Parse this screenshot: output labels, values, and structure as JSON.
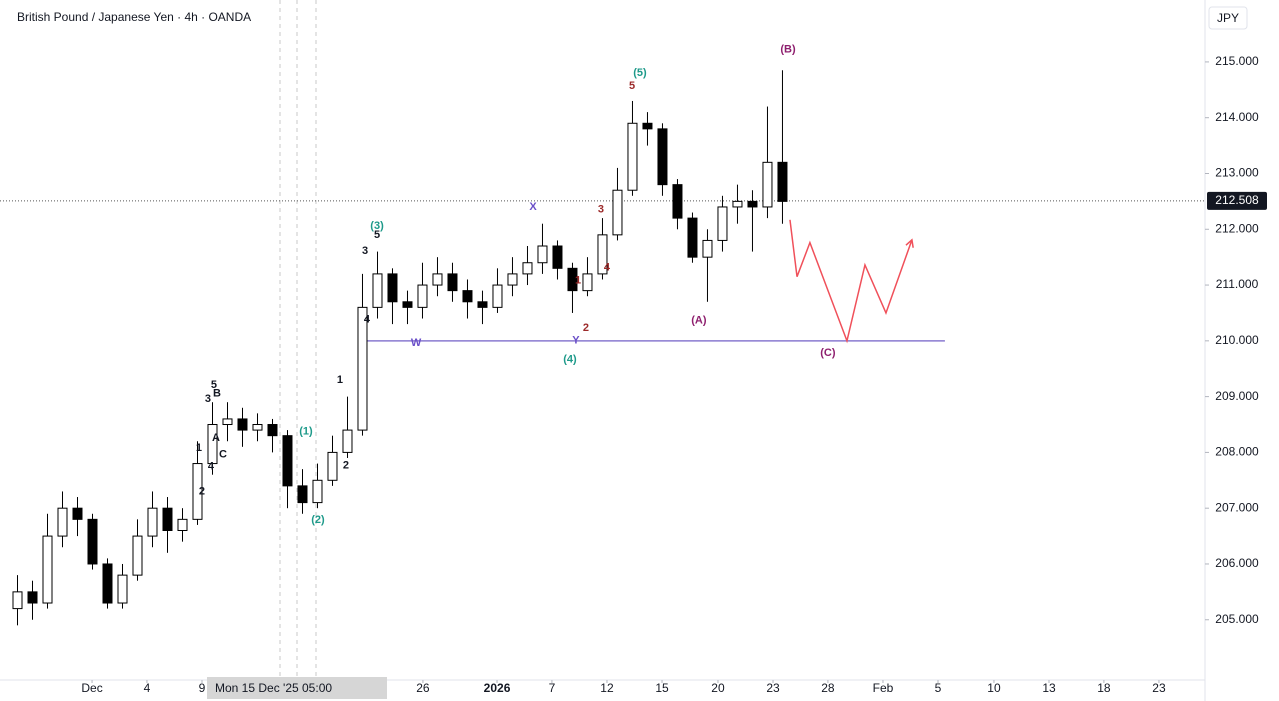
{
  "chart_data": {
    "type": "candlestick",
    "title": "British Pound / Japanese Yen · 4h · OANDA",
    "currency": "JPY",
    "last_price": 212.508,
    "crosshair_label": "Mon 15 Dec '25  05:00",
    "up_color": "#ffffff",
    "down_color": "#000000",
    "open": [
      205.2,
      205.5,
      205.3,
      206.5,
      207.0,
      206.8,
      206.0,
      205.3,
      205.8,
      206.5,
      207.0,
      206.6,
      206.8,
      207.8,
      208.5,
      208.6,
      208.4,
      208.5,
      208.3,
      207.4,
      207.1,
      207.5,
      208.0,
      208.4,
      210.6,
      211.2,
      210.7,
      210.6,
      211.0,
      211.2,
      210.9,
      210.7,
      210.6,
      211.0,
      211.2,
      211.4,
      211.7,
      211.3,
      210.9,
      211.2,
      211.9,
      212.7,
      213.9,
      213.8,
      212.8,
      212.2,
      211.5,
      211.8,
      212.4,
      212.5,
      212.4,
      213.2
    ],
    "high": [
      205.8,
      205.7,
      206.9,
      207.3,
      207.2,
      206.9,
      206.1,
      206.0,
      206.8,
      207.3,
      207.2,
      207.0,
      208.2,
      208.9,
      208.9,
      208.8,
      208.7,
      208.6,
      208.4,
      207.7,
      207.8,
      208.3,
      209.0,
      211.2,
      211.6,
      211.3,
      210.9,
      211.4,
      211.5,
      211.4,
      211.1,
      210.9,
      211.3,
      211.5,
      211.7,
      212.1,
      211.8,
      211.4,
      211.5,
      212.2,
      213.1,
      214.3,
      214.1,
      213.9,
      212.9,
      212.3,
      212.0,
      212.6,
      212.8,
      212.7,
      214.2,
      214.85
    ],
    "low": [
      204.9,
      205.0,
      205.2,
      206.3,
      206.5,
      205.9,
      205.2,
      205.2,
      205.7,
      206.3,
      206.2,
      206.4,
      206.7,
      207.6,
      208.2,
      208.1,
      208.2,
      208.0,
      207.0,
      206.9,
      207.0,
      207.4,
      207.9,
      208.3,
      210.4,
      210.3,
      210.3,
      210.4,
      210.8,
      210.7,
      210.4,
      210.3,
      210.5,
      210.8,
      211.0,
      211.2,
      211.1,
      210.5,
      210.8,
      211.1,
      211.8,
      212.6,
      213.5,
      212.6,
      212.0,
      211.4,
      210.7,
      211.6,
      212.1,
      211.6,
      212.2,
      212.1
    ],
    "close": [
      205.5,
      205.3,
      206.5,
      207.0,
      206.8,
      206.0,
      205.3,
      205.8,
      206.5,
      207.0,
      206.6,
      206.8,
      207.8,
      208.5,
      208.6,
      208.4,
      208.5,
      208.3,
      207.4,
      207.1,
      207.5,
      208.0,
      208.4,
      210.6,
      211.2,
      210.7,
      210.6,
      211.0,
      211.2,
      210.9,
      210.7,
      210.6,
      211.0,
      211.2,
      211.4,
      211.7,
      211.3,
      210.9,
      211.2,
      211.9,
      212.7,
      213.9,
      213.8,
      212.8,
      212.2,
      211.5,
      211.8,
      212.4,
      212.5,
      212.4,
      213.2,
      212.5
    ],
    "projection": {
      "color": "#f0505a",
      "x": [
        52.0,
        52.47,
        53.33,
        55.8,
        57.0,
        58.4,
        60.13
      ],
      "values": [
        212.17,
        211.15,
        211.76,
        210.0,
        211.36,
        210.5,
        211.81
      ]
    },
    "level": {
      "color": "#8a7ad0",
      "value": 210.0,
      "x": [
        23.33,
        62.33
      ]
    },
    "xlim": [
      0,
      79.67
    ],
    "ylim": [
      203.92,
      216.11
    ],
    "xticks": [
      {
        "value": 5.47,
        "label": "Dec"
      },
      {
        "value": 9.13,
        "label": "4"
      },
      {
        "value": 12.8,
        "label": "9"
      },
      {
        "value": 27.53,
        "label": "26"
      },
      {
        "value": 32.47,
        "label": "2026"
      },
      {
        "value": 36.13,
        "label": "7"
      },
      {
        "value": 39.8,
        "label": "12"
      },
      {
        "value": 43.47,
        "label": "15"
      },
      {
        "value": 47.2,
        "label": "20"
      },
      {
        "value": 50.87,
        "label": "23"
      },
      {
        "value": 54.53,
        "label": "28"
      },
      {
        "value": 58.2,
        "label": "Feb"
      },
      {
        "value": 61.87,
        "label": "5"
      },
      {
        "value": 65.6,
        "label": "10"
      },
      {
        "value": 69.27,
        "label": "13"
      },
      {
        "value": 72.93,
        "label": "18"
      },
      {
        "value": 76.6,
        "label": "23"
      }
    ],
    "yticks": [
      {
        "value": 205,
        "label": "205.000"
      },
      {
        "value": 206,
        "label": "206.000"
      },
      {
        "value": 207,
        "label": "207.000"
      },
      {
        "value": 208,
        "label": "208.000"
      },
      {
        "value": 209,
        "label": "209.000"
      },
      {
        "value": 210,
        "label": "210.000"
      },
      {
        "value": 211,
        "label": "211.000"
      },
      {
        "value": 212,
        "label": "212.000"
      },
      {
        "value": 213,
        "label": "213.000"
      },
      {
        "value": 214,
        "label": "214.000"
      },
      {
        "value": 215,
        "label": "215.000"
      }
    ],
    "wave_labels": [
      {
        "text": "(1)",
        "x": 19.73,
        "y": 208.37,
        "color": "#1e9a8a"
      },
      {
        "text": "(2)",
        "x": 20.53,
        "y": 206.79,
        "color": "#1e9a8a"
      },
      {
        "text": "(3)",
        "x": 24.47,
        "y": 212.06,
        "color": "#1e9a8a"
      },
      {
        "text": "(4)",
        "x": 37.33,
        "y": 209.66,
        "color": "#1e9a8a"
      },
      {
        "text": "(5)",
        "x": 42.0,
        "y": 214.8,
        "color": "#1e9a8a"
      },
      {
        "text": "(A)",
        "x": 45.93,
        "y": 210.36,
        "color": "#8e1f6e"
      },
      {
        "text": "(B)",
        "x": 51.87,
        "y": 215.22,
        "color": "#8e1f6e"
      },
      {
        "text": "(C)",
        "x": 54.53,
        "y": 209.78,
        "color": "#8e1f6e"
      },
      {
        "text": "W",
        "x": 27.07,
        "y": 209.96,
        "color": "#6a4fc8"
      },
      {
        "text": "X",
        "x": 34.87,
        "y": 212.4,
        "color": "#6a4fc8"
      },
      {
        "text": "Y",
        "x": 37.73,
        "y": 210.0,
        "color": "#6a4fc8"
      },
      {
        "text": "5",
        "x": 41.47,
        "y": 214.57,
        "color": "#9c2a2a"
      },
      {
        "text": "3",
        "x": 39.4,
        "y": 212.35,
        "color": "#9c2a2a"
      },
      {
        "text": "4",
        "x": 39.8,
        "y": 211.31,
        "color": "#9c2a2a"
      },
      {
        "text": "1",
        "x": 37.87,
        "y": 211.08,
        "color": "#9c2a2a"
      },
      {
        "text": "2",
        "x": 38.4,
        "y": 210.23,
        "color": "#9c2a2a"
      },
      {
        "text": "1",
        "x": 22.0,
        "y": 209.3,
        "color": "#131722"
      },
      {
        "text": "2",
        "x": 22.4,
        "y": 207.76,
        "color": "#131722"
      },
      {
        "text": "3",
        "x": 23.67,
        "y": 211.61,
        "color": "#131722"
      },
      {
        "text": "5",
        "x": 24.47,
        "y": 211.9,
        "color": "#131722"
      },
      {
        "text": "4",
        "x": 23.8,
        "y": 210.38,
        "color": "#131722"
      },
      {
        "text": "5",
        "x": 13.6,
        "y": 209.21,
        "color": "#131722"
      },
      {
        "text": "3",
        "x": 13.2,
        "y": 208.96,
        "color": "#131722"
      },
      {
        "text": "B",
        "x": 13.8,
        "y": 209.05,
        "color": "#131722"
      },
      {
        "text": "A",
        "x": 13.73,
        "y": 208.26,
        "color": "#131722"
      },
      {
        "text": "C",
        "x": 14.2,
        "y": 207.96,
        "color": "#131722"
      },
      {
        "text": "1",
        "x": 12.6,
        "y": 208.08,
        "color": "#131722"
      },
      {
        "text": "4",
        "x": 13.4,
        "y": 207.75,
        "color": "#131722"
      },
      {
        "text": "2",
        "x": 12.8,
        "y": 207.3,
        "color": "#131722"
      }
    ]
  }
}
